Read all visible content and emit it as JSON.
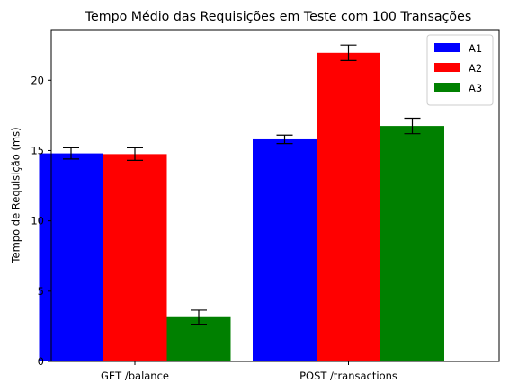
{
  "chart_data": {
    "type": "bar",
    "title": "Tempo Médio das Requisições em Teste com 100 Transações",
    "xlabel": "",
    "ylabel": "Tempo de Requisição (ms)",
    "categories": [
      "GET /balance",
      "POST /transactions"
    ],
    "ylim": [
      0,
      23.6
    ],
    "yticks": [
      0,
      5,
      10,
      15,
      20
    ],
    "grid": false,
    "legend_position": "top-right",
    "series": [
      {
        "name": "A1",
        "color": "#0000ff",
        "values": [
          14.8,
          15.8
        ],
        "errors": [
          0.4,
          0.3
        ]
      },
      {
        "name": "A2",
        "color": "#ff0000",
        "values": [
          14.75,
          21.95
        ],
        "errors": [
          0.45,
          0.55
        ]
      },
      {
        "name": "A3",
        "color": "#008000",
        "values": [
          3.15,
          16.75
        ],
        "errors": [
          0.5,
          0.55
        ]
      }
    ]
  }
}
